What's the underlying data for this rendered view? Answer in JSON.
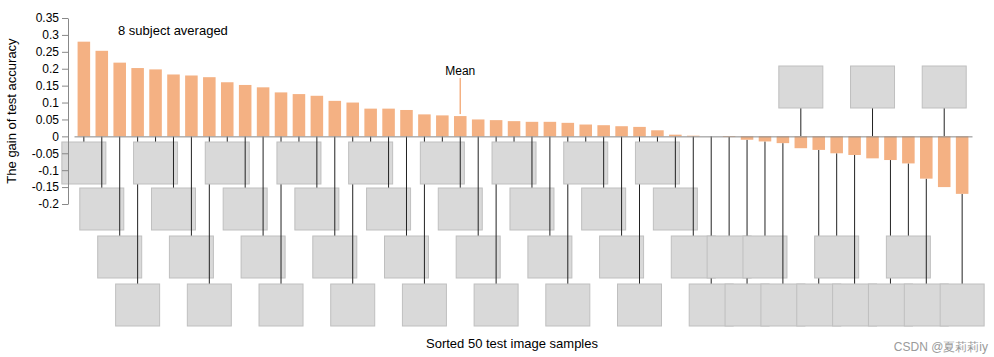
{
  "chart_data": {
    "type": "bar",
    "x_label": "Sorted 50 test image samples",
    "y_label": "The gain of test accuracy",
    "annotations": [
      "8 subject averaged",
      "CSDN @夏莉莉iy"
    ],
    "mean_label": "Mean",
    "mean": 0.06,
    "categories": [
      null,
      null,
      null,
      null,
      null,
      null,
      null,
      null,
      null,
      null,
      null,
      null,
      null,
      null,
      null,
      null,
      null,
      null,
      null,
      null,
      null,
      null,
      null,
      null,
      null,
      null,
      null,
      null,
      null,
      null,
      null,
      null,
      null,
      null,
      null,
      null,
      null,
      null,
      null,
      null,
      null,
      null,
      null,
      null,
      null,
      null,
      null,
      null,
      null,
      null
    ],
    "values": [
      0.28,
      0.253,
      0.218,
      0.202,
      0.198,
      0.183,
      0.18,
      0.175,
      0.16,
      0.152,
      0.145,
      0.13,
      0.125,
      0.12,
      0.105,
      0.1,
      0.082,
      0.082,
      0.078,
      0.065,
      0.062,
      0.06,
      0.05,
      0.048,
      0.045,
      0.043,
      0.043,
      0.04,
      0.035,
      0.033,
      0.03,
      0.028,
      0.018,
      0.005,
      0.002,
      0,
      -0.002,
      -0.01,
      -0.015,
      -0.02,
      -0.035,
      -0.04,
      -0.05,
      -0.055,
      -0.065,
      -0.07,
      -0.08,
      -0.125,
      -0.15,
      -0.17
    ],
    "color": "#f4b183",
    "ylim": [
      -0.2,
      0.35
    ],
    "yticks": [
      -0.2,
      -0.15,
      -0.1,
      -0.05,
      0,
      0.05,
      0.1,
      0.15,
      0.2,
      0.25,
      0.3,
      0.35
    ],
    "grid": false,
    "tick_labels": "y"
  }
}
